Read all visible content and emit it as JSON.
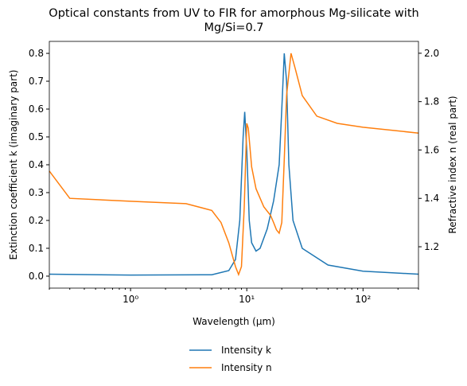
{
  "chart_data": {
    "type": "line",
    "title": "Optical constants from UV to FIR for amorphous Mg-silicate with Mg/Si=0.7",
    "xlabel": "Wavelength (μm)",
    "ylabel": "Extinction coefficient k (imaginary part)",
    "y2label": "Refractive index n (real part)",
    "xscale": "log",
    "xlim": [
      0.2,
      300
    ],
    "xticks": [
      {
        "value": 1,
        "label": "10⁰"
      },
      {
        "value": 10,
        "label": "10¹"
      },
      {
        "value": 100,
        "label": "10²"
      }
    ],
    "ylim": [
      -0.043,
      0.843
    ],
    "yticks": [
      0.0,
      0.1,
      0.2,
      0.3,
      0.4,
      0.5,
      0.6,
      0.7,
      0.8
    ],
    "y2lim": [
      1.029,
      2.049
    ],
    "y2ticks": [
      1.2,
      1.4,
      1.6,
      1.8,
      2.0
    ],
    "legend": "below",
    "series": [
      {
        "name": "Intensity k",
        "color": "#1f77b4",
        "x": [
          0.2,
          1,
          5,
          7,
          8,
          8.7,
          9.3,
          9.6,
          10,
          10.5,
          11,
          12,
          13,
          15,
          17,
          19,
          20,
          21,
          22,
          23,
          25,
          30,
          50,
          100,
          300
        ],
        "values": [
          0.007,
          0.004,
          0.005,
          0.02,
          0.06,
          0.2,
          0.5,
          0.59,
          0.45,
          0.2,
          0.12,
          0.09,
          0.1,
          0.17,
          0.27,
          0.4,
          0.6,
          0.8,
          0.7,
          0.4,
          0.2,
          0.1,
          0.04,
          0.018,
          0.007
        ]
      },
      {
        "name": "Intensity n",
        "color": "#ff7f0e",
        "axis": "y2",
        "x": [
          0.2,
          0.3,
          1,
          3,
          5,
          6,
          7,
          8,
          8.5,
          9,
          9.5,
          10,
          10.3,
          11,
          12,
          14,
          16,
          17,
          18,
          19,
          20,
          21,
          22,
          24,
          26,
          30,
          40,
          60,
          100,
          300
        ],
        "values": [
          1.513,
          1.4,
          1.388,
          1.378,
          1.35,
          1.3,
          1.216,
          1.118,
          1.085,
          1.118,
          1.365,
          1.71,
          1.69,
          1.53,
          1.44,
          1.365,
          1.33,
          1.3,
          1.27,
          1.256,
          1.3,
          1.56,
          1.825,
          2.0,
          1.94,
          1.825,
          1.74,
          1.71,
          1.694,
          1.67
        ]
      }
    ]
  }
}
